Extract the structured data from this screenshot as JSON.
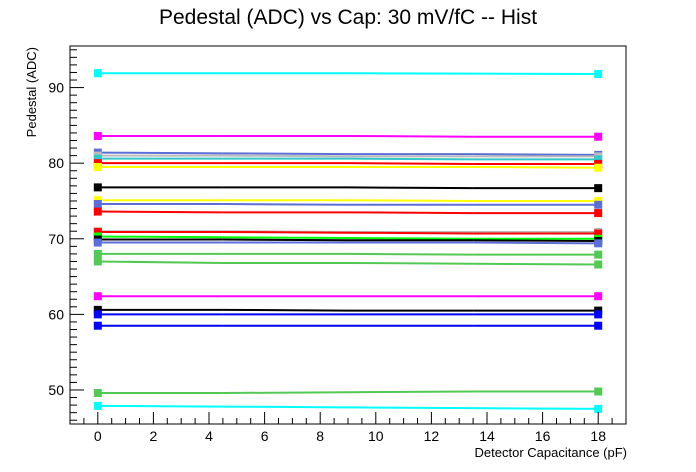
{
  "chart_data": {
    "type": "line",
    "title": "Pedestal (ADC) vs Cap: 30 mV/fC -- Hist",
    "xlabel": "Detector Capacitance (pF)",
    "ylabel": "Pedestal (ADC)",
    "xlim": [
      -1,
      19
    ],
    "ylim": [
      45.5,
      95.5
    ],
    "x": [
      0,
      4.5,
      9,
      13.5,
      18
    ],
    "xticks": [
      0,
      2,
      4,
      6,
      8,
      10,
      12,
      14,
      16,
      18
    ],
    "yticks": [
      50,
      60,
      70,
      80,
      90
    ],
    "grid": false,
    "series": [
      {
        "color": "#00ffff",
        "values": [
          91.9,
          91.9,
          91.9,
          91.85,
          91.8
        ]
      },
      {
        "color": "#ff00ff",
        "values": [
          83.6,
          83.6,
          83.6,
          83.5,
          83.5
        ]
      },
      {
        "color": "#5b6fd6",
        "values": [
          81.4,
          81.3,
          81.2,
          81.2,
          81.1
        ]
      },
      {
        "color": "#bbbbbb",
        "values": [
          81.0,
          81.0,
          80.9,
          80.9,
          80.9
        ]
      },
      {
        "color": "#34c7c7",
        "values": [
          80.6,
          80.6,
          80.6,
          80.5,
          80.5
        ]
      },
      {
        "color": "#ff0000",
        "values": [
          80.0,
          80.0,
          80.0,
          79.9,
          79.9
        ]
      },
      {
        "color": "#ffff00",
        "values": [
          79.5,
          79.5,
          79.5,
          79.5,
          79.4
        ]
      },
      {
        "color": "#000000",
        "values": [
          76.8,
          76.8,
          76.8,
          76.7,
          76.7
        ]
      },
      {
        "color": "#ffff00",
        "values": [
          75.1,
          75.1,
          75.1,
          75.0,
          75.0
        ]
      },
      {
        "color": "#5b6fd6",
        "values": [
          74.6,
          74.6,
          74.5,
          74.5,
          74.5
        ]
      },
      {
        "color": "#ff0000",
        "values": [
          73.6,
          73.5,
          73.5,
          73.4,
          73.4
        ]
      },
      {
        "color": "#bbbbbb",
        "values": [
          71.0,
          71.0,
          70.9,
          70.9,
          70.9
        ]
      },
      {
        "color": "#ff0000",
        "values": [
          70.9,
          70.9,
          70.8,
          70.7,
          70.7
        ]
      },
      {
        "color": "#00ff00",
        "values": [
          70.3,
          70.2,
          70.1,
          70.0,
          70.0
        ]
      },
      {
        "color": "#000000",
        "values": [
          69.9,
          69.9,
          69.8,
          69.8,
          69.7
        ]
      },
      {
        "color": "#5b6fd6",
        "values": [
          69.5,
          69.5,
          69.5,
          69.5,
          69.4
        ]
      },
      {
        "color": "#54c854",
        "values": [
          68.0,
          68.0,
          68.0,
          67.9,
          67.9
        ]
      },
      {
        "color": "#54c854",
        "values": [
          67.0,
          66.8,
          66.8,
          66.7,
          66.6
        ]
      },
      {
        "color": "#ff00ff",
        "values": [
          62.4,
          62.4,
          62.4,
          62.4,
          62.4
        ]
      },
      {
        "color": "#000000",
        "values": [
          60.6,
          60.6,
          60.5,
          60.5,
          60.5
        ]
      },
      {
        "color": "#0000ff",
        "values": [
          60.0,
          60.0,
          60.0,
          60.0,
          60.0
        ]
      },
      {
        "color": "#0000ff",
        "values": [
          58.5,
          58.5,
          58.5,
          58.5,
          58.5
        ]
      },
      {
        "color": "#54c854",
        "values": [
          49.6,
          49.6,
          49.7,
          49.8,
          49.8
        ]
      },
      {
        "color": "#00ffff",
        "values": [
          47.9,
          47.8,
          47.7,
          47.6,
          47.5
        ]
      }
    ]
  }
}
